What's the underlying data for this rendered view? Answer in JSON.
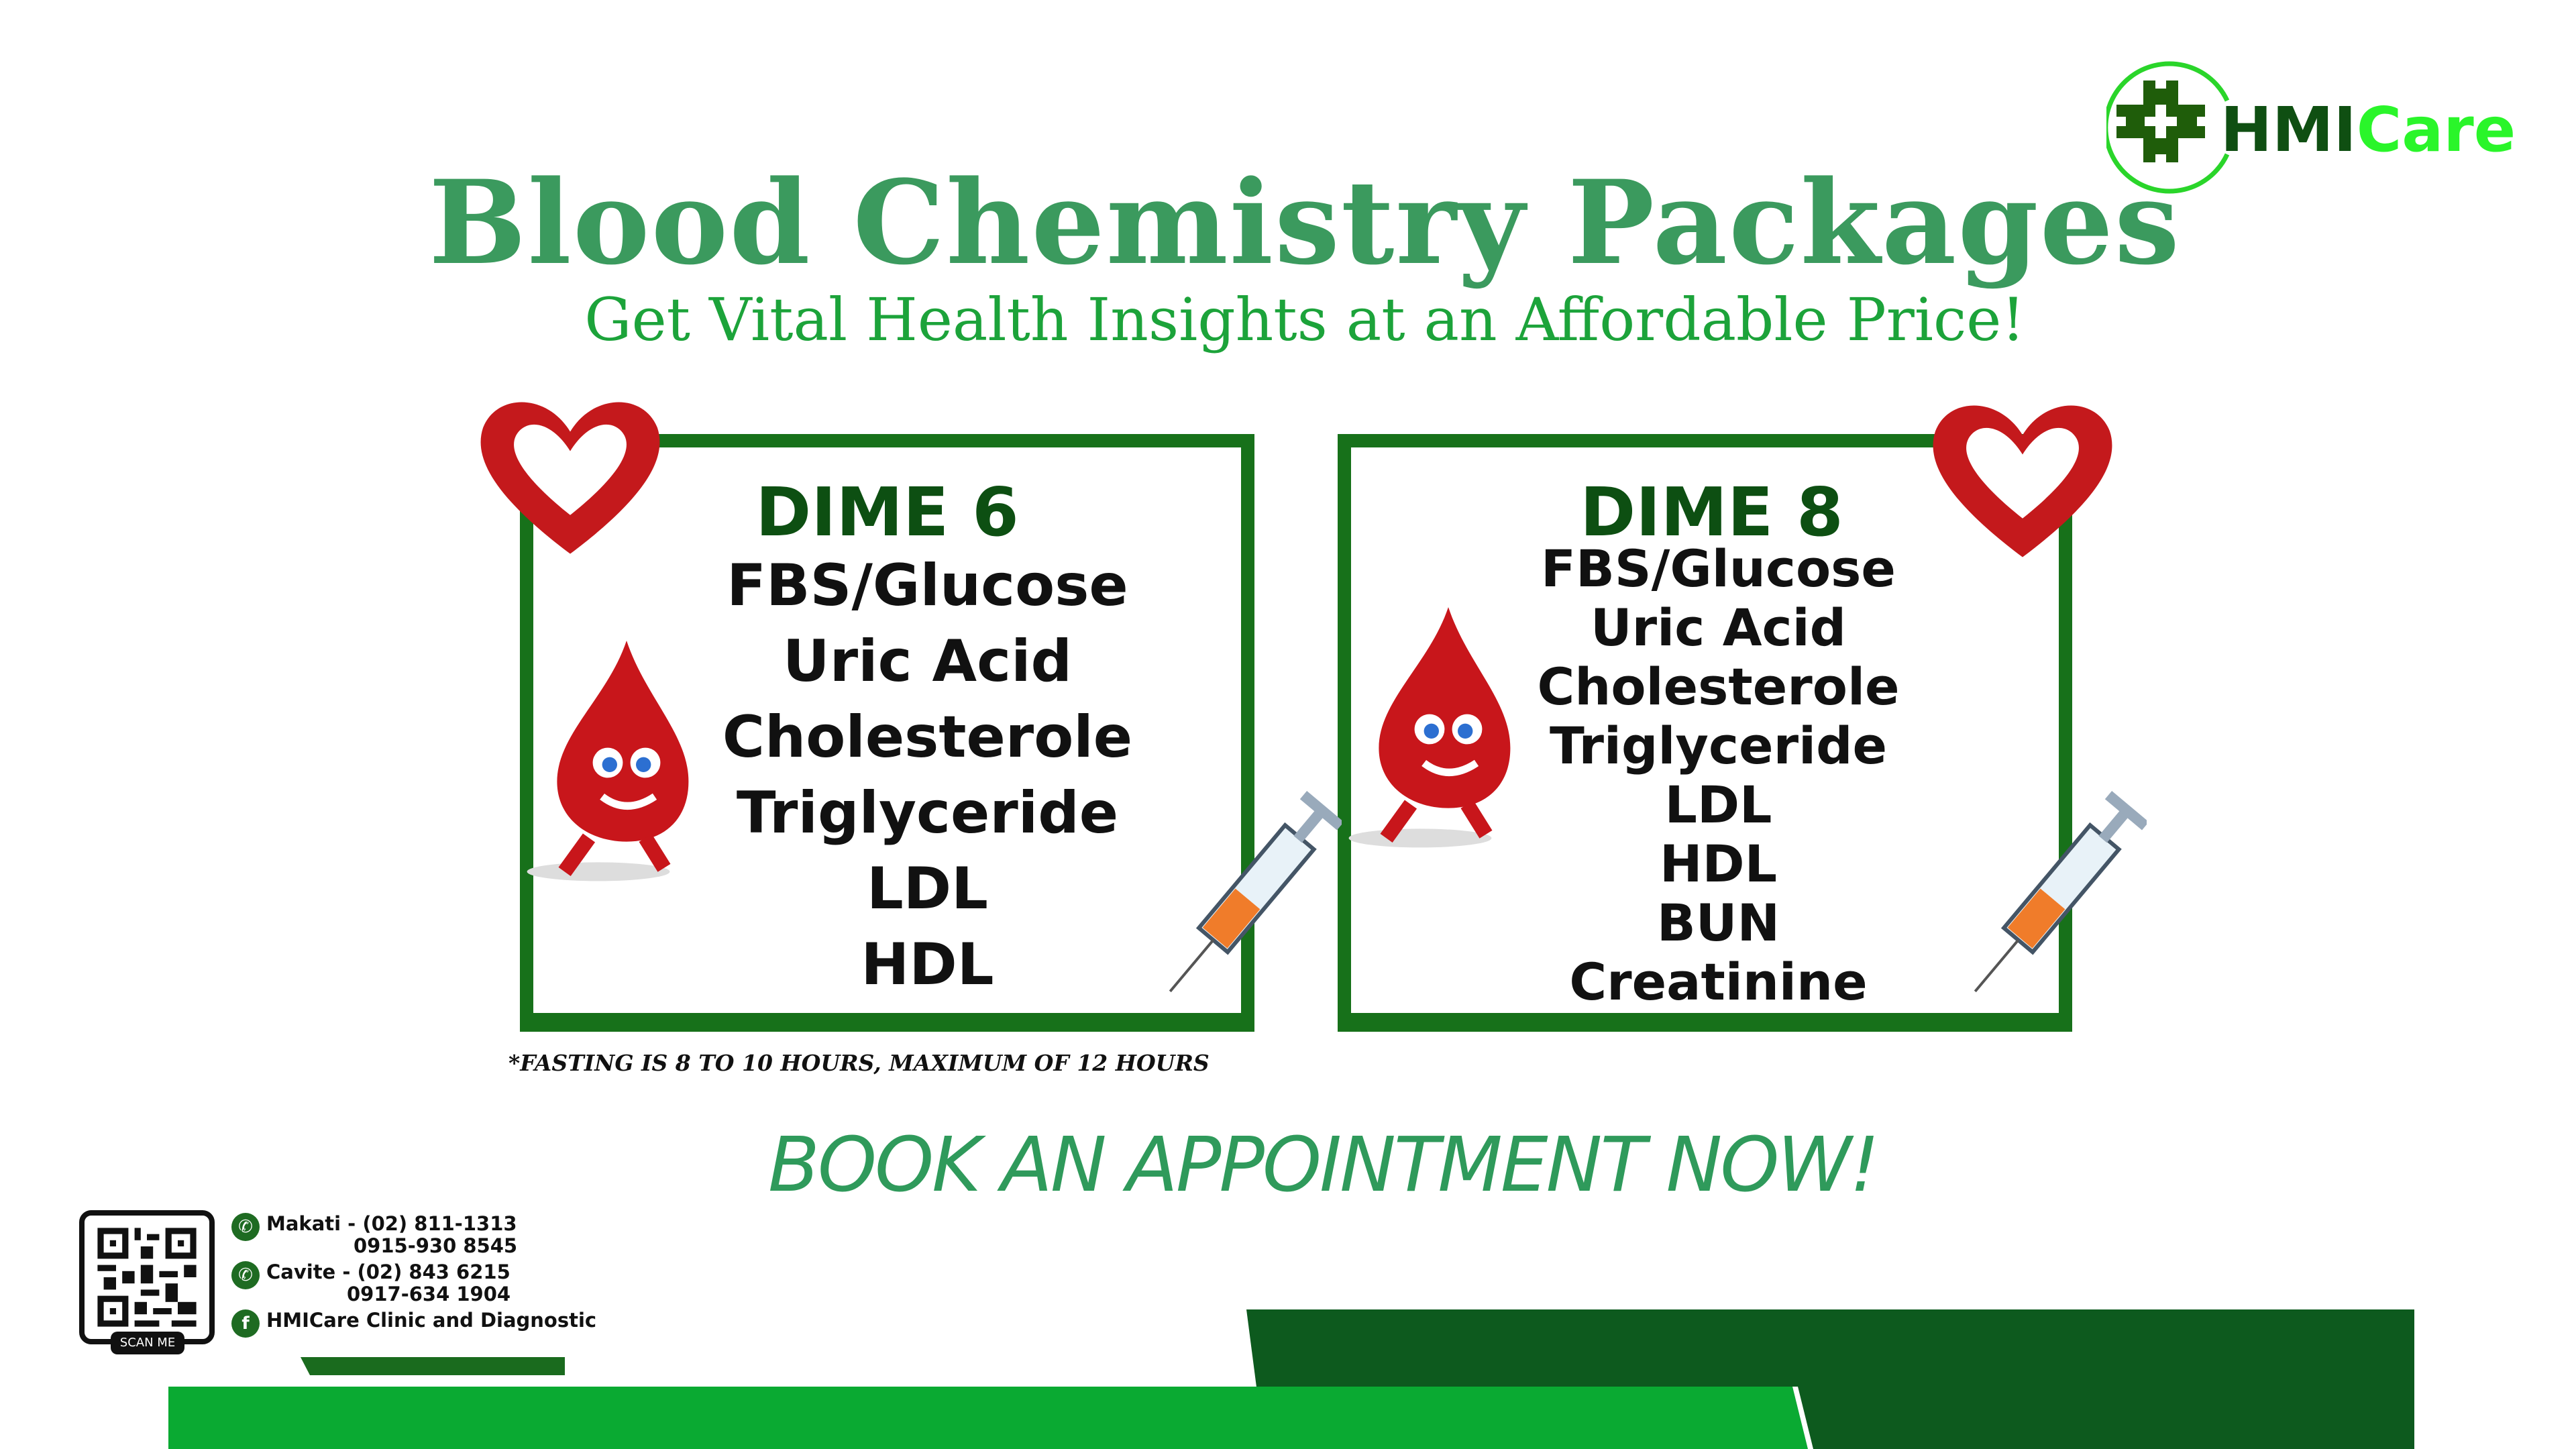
{
  "header": {
    "title": "Blood Chemistry Packages",
    "subtitle": "Get Vital Health Insights at an Affordable Price!"
  },
  "logo": {
    "brand_dark": "HMI",
    "brand_light": "Care",
    "colors": {
      "dark": "#0f4f12",
      "light": "#2af52a"
    }
  },
  "packages": [
    {
      "name": "DIME 6",
      "tests": [
        "FBS/Glucose",
        "Uric Acid",
        "Cholesterole",
        "Triglyceride",
        "LDL",
        "HDL"
      ]
    },
    {
      "name": "DIME 8",
      "tests": [
        "FBS/Glucose",
        "Uric Acid",
        "Cholesterole",
        "Triglyceride",
        "LDL",
        "HDL",
        "BUN",
        "Creatinine"
      ]
    }
  ],
  "note": "*FASTING IS 8 TO 10 HOURS, MAXIMUM OF 12 HOURS",
  "cta": "BOOK AN APPOINTMENT NOW!",
  "contacts": {
    "makati": "Makati - (02) 811-1313",
    "makati_mobile": "0915-930 8545",
    "cavite": "Cavite - (02) 843 6215",
    "cavite_mobile": "0917-634 1904",
    "facebook": "HMICare Clinic and Diagnostic",
    "scan_label": "SCAN ME"
  },
  "colors": {
    "title": "#3b9a5e",
    "subtitle": "#1ca33a",
    "box_border": "#17711a",
    "bar_bright": "#0aaa32",
    "bar_dark": "#0d5a1e"
  }
}
